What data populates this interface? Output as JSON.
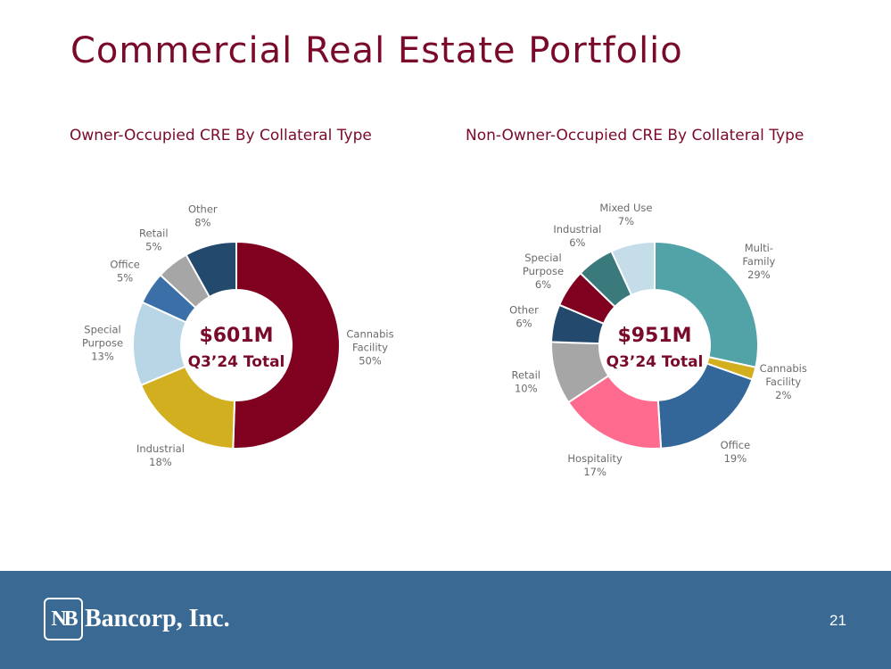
{
  "slide": {
    "title": "Commercial Real Estate Portfolio",
    "page_number": "21",
    "logo_mark": "NB",
    "logo_name": "Bancorp, Inc."
  },
  "chart_data": [
    {
      "type": "pie",
      "title": "Owner-Occupied CRE By Collateral Type",
      "center_amount": "$601M",
      "center_label": "Q3’24 Total",
      "slices": [
        {
          "label": [
            "Cannabis",
            "Facility"
          ],
          "value": 50,
          "pct_label": "50%",
          "color": "#800020"
        },
        {
          "label": [
            "Industrial"
          ],
          "value": 18,
          "pct_label": "18%",
          "color": "#d1af1f"
        },
        {
          "label": [
            "Special",
            "Purpose"
          ],
          "value": 13,
          "pct_label": "13%",
          "color": "#b8d6e6"
        },
        {
          "label": [
            "Office"
          ],
          "value": 5,
          "pct_label": "5%",
          "color": "#3a6fa8"
        },
        {
          "label": [
            "Retail"
          ],
          "value": 5,
          "pct_label": "5%",
          "color": "#a6a6a6"
        },
        {
          "label": [
            "Other"
          ],
          "value": 8,
          "pct_label": "8%",
          "color": "#234a6d"
        }
      ]
    },
    {
      "type": "pie",
      "title": "Non-Owner-Occupied CRE By Collateral Type",
      "center_amount": "$951M",
      "center_label": "Q3’24 Total",
      "slices": [
        {
          "label": [
            "Multi-",
            "Family"
          ],
          "value": 29,
          "pct_label": "29%",
          "color": "#52a3a8"
        },
        {
          "label": [
            "Cannabis",
            "Facility"
          ],
          "value": 2,
          "pct_label": "2%",
          "color": "#d1af1f"
        },
        {
          "label": [
            "Office"
          ],
          "value": 19,
          "pct_label": "19%",
          "color": "#336699"
        },
        {
          "label": [
            "Hospitality"
          ],
          "value": 17,
          "pct_label": "17%",
          "color": "#ff6b8f"
        },
        {
          "label": [
            "Retail"
          ],
          "value": 10,
          "pct_label": "10%",
          "color": "#a6a6a6"
        },
        {
          "label": [
            "Other"
          ],
          "value": 6,
          "pct_label": "6%",
          "color": "#234a6d"
        },
        {
          "label": [
            "Special",
            "Purpose"
          ],
          "value": 6,
          "pct_label": "6%",
          "color": "#800020"
        },
        {
          "label": [
            "Industrial"
          ],
          "value": 6,
          "pct_label": "6%",
          "color": "#3a7a7c"
        },
        {
          "label": [
            "Mixed Use"
          ],
          "value": 7,
          "pct_label": "7%",
          "color": "#c5dde9"
        }
      ]
    }
  ]
}
